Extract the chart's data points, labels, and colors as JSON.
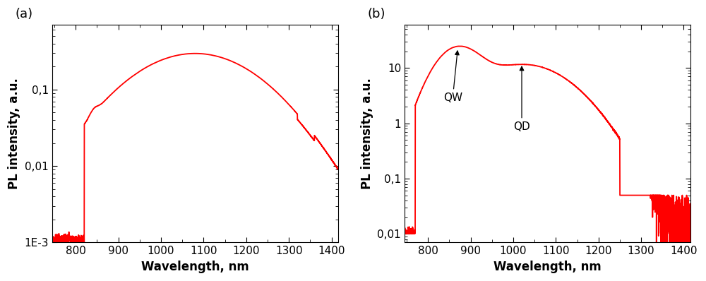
{
  "panel_a": {
    "label": "(a)",
    "xlim": [
      745,
      1415
    ],
    "ylim": [
      0.001,
      0.7
    ],
    "yticks": [
      0.001,
      0.01,
      0.1
    ],
    "ytick_labels": [
      "1E-3",
      "0,01",
      "0,1"
    ],
    "xticks": [
      800,
      900,
      1000,
      1100,
      1200,
      1300,
      1400
    ],
    "xlabel": "Wavelength, nm",
    "ylabel": "PL intensity, a.u."
  },
  "panel_b": {
    "label": "(b)",
    "xlim": [
      745,
      1415
    ],
    "ylim": [
      0.007,
      60
    ],
    "yticks": [
      0.01,
      0.1,
      1,
      10
    ],
    "ytick_labels": [
      "0,01",
      "0,1",
      "1",
      "10"
    ],
    "xticks": [
      800,
      900,
      1000,
      1100,
      1200,
      1300,
      1400
    ],
    "xlabel": "Wavelength, nm",
    "ylabel": "PL intensity, a.u."
  },
  "line_color": "#ff0000",
  "line_width": 1.3,
  "background_color": "#ffffff",
  "tick_color": "#000000",
  "label_fontsize": 12,
  "tick_fontsize": 11,
  "annotation_fontsize": 11
}
